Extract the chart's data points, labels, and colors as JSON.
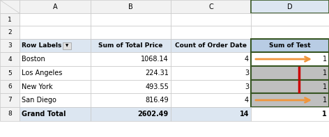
{
  "col_headers": [
    "",
    "A",
    "B",
    "C",
    "D"
  ],
  "row_numbers": [
    "1",
    "2",
    "3",
    "4",
    "5",
    "6",
    "7",
    "8"
  ],
  "header_row": [
    "Row Labels",
    "Sum of Total Price",
    "Count of Order Date",
    "Sum of Test"
  ],
  "data_rows": [
    [
      "Boston",
      "1068.14",
      "4",
      "1"
    ],
    [
      "Los Angeles",
      "224.31",
      "3",
      "1"
    ],
    [
      "New York",
      "493.55",
      "3",
      "1"
    ],
    [
      "San Diego",
      "816.49",
      "4",
      "1"
    ]
  ],
  "grand_total_row": [
    "Grand Total",
    "2602.49",
    "14",
    "1"
  ],
  "bg_color": "#ffffff",
  "grid_color": "#c8c8c8",
  "header_col_bg": "#dce6f1",
  "col_D_highlight_bg": "#bfbfbf",
  "col_D_border_color": "#375623",
  "col_D_header_bg": "#b8cce4",
  "arrow_color": "#f0953a",
  "red_bar_color": "#cc0000",
  "row_number_bg": "#f2f2f2",
  "col_letter_bg": "#f2f2f2",
  "selected_col_D_letter_bg": "#dce6f1",
  "grand_total_bg": "#dce6f1",
  "figsize": [
    4.72,
    1.97
  ],
  "dpi": 100
}
